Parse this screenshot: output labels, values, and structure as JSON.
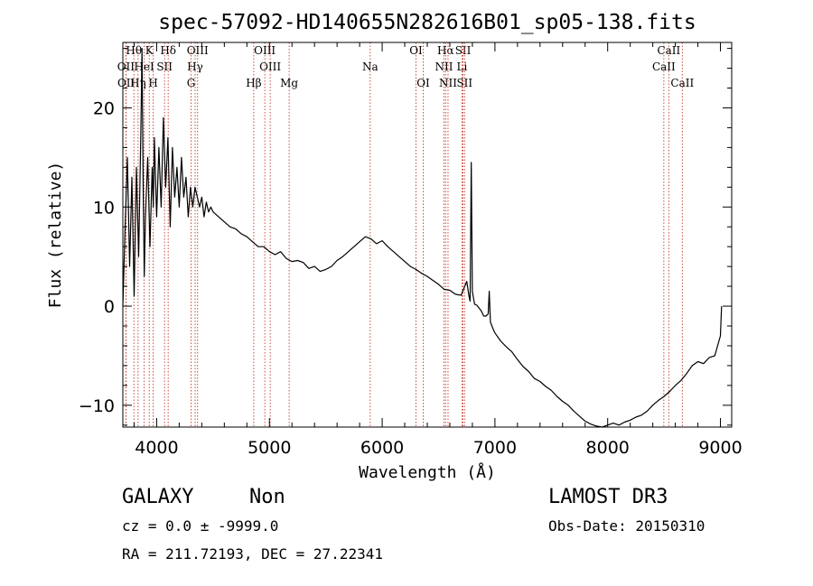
{
  "chart_data": {
    "type": "line",
    "title": "spec-57092-HD140655N282616B01_sp05-138.fits",
    "xlabel": "Wavelength (Å)",
    "ylabel": "Flux (relative)",
    "xlim": [
      3700,
      9100
    ],
    "ylim": [
      -12.2,
      26.6
    ],
    "xticks": [
      4000,
      5000,
      6000,
      7000,
      8000,
      9000
    ],
    "yticks": [
      -10,
      0,
      10,
      20
    ],
    "grid": false,
    "series": [
      {
        "color": "#000000",
        "x": [
          3700,
          3720,
          3740,
          3760,
          3780,
          3800,
          3820,
          3840,
          3860,
          3870,
          3880,
          3890,
          3900,
          3920,
          3940,
          3960,
          3970,
          3980,
          4000,
          4020,
          4040,
          4060,
          4080,
          4100,
          4120,
          4140,
          4160,
          4180,
          4200,
          4220,
          4240,
          4260,
          4280,
          4300,
          4320,
          4340,
          4360,
          4380,
          4400,
          4420,
          4440,
          4460,
          4480,
          4500,
          4550,
          4600,
          4650,
          4700,
          4750,
          4800,
          4850,
          4900,
          4950,
          5000,
          5050,
          5100,
          5150,
          5200,
          5250,
          5300,
          5350,
          5400,
          5450,
          5500,
          5550,
          5600,
          5650,
          5700,
          5750,
          5800,
          5850,
          5900,
          5950,
          6000,
          6050,
          6100,
          6150,
          6200,
          6250,
          6300,
          6350,
          6400,
          6450,
          6500,
          6550,
          6600,
          6650,
          6700,
          6750,
          6770,
          6780,
          6790,
          6800,
          6810,
          6820,
          6840,
          6860,
          6880,
          6900,
          6920,
          6940,
          6950,
          6960,
          6980,
          7000,
          7050,
          7100,
          7150,
          7200,
          7250,
          7300,
          7350,
          7400,
          7450,
          7500,
          7550,
          7600,
          7650,
          7700,
          7750,
          7800,
          7850,
          7900,
          7950,
          8000,
          8050,
          8100,
          8150,
          8200,
          8250,
          8300,
          8350,
          8400,
          8450,
          8500,
          8550,
          8600,
          8650,
          8700,
          8750,
          8800,
          8850,
          8900,
          8950,
          9000,
          9010
        ],
        "y": [
          0,
          8,
          15,
          4,
          13,
          1,
          14,
          5,
          18,
          26,
          12,
          3,
          9,
          15,
          6,
          14,
          10,
          17,
          9,
          16,
          10,
          19,
          12,
          17,
          8,
          16,
          11,
          14,
          10,
          15,
          11,
          13,
          9,
          12,
          10,
          12,
          11,
          10,
          11,
          9,
          10.5,
          9.5,
          10,
          9.5,
          9,
          8.5,
          8,
          7.8,
          7.3,
          7,
          6.5,
          6,
          6,
          5.5,
          5.2,
          5.5,
          4.8,
          4.5,
          4.6,
          4.4,
          3.8,
          4,
          3.5,
          3.7,
          4,
          4.6,
          5,
          5.5,
          6,
          6.5,
          7,
          6.8,
          6.3,
          6.6,
          6,
          5.5,
          5,
          4.5,
          4,
          3.7,
          3.3,
          3,
          2.6,
          2.2,
          1.7,
          1.6,
          1.2,
          1.1,
          2.5,
          1,
          0.5,
          14.5,
          1.5,
          0.8,
          0.2,
          0.1,
          -0.2,
          -0.5,
          -1,
          -1,
          -0.8,
          1.5,
          -1.6,
          -2.2,
          -2.7,
          -3.5,
          -4.1,
          -4.6,
          -5.4,
          -6.1,
          -6.6,
          -7.3,
          -7.6,
          -8.1,
          -8.5,
          -9.1,
          -9.6,
          -10,
          -10.6,
          -11.1,
          -11.6,
          -11.9,
          -12.1,
          -12.2,
          -12,
          -11.8,
          -12,
          -11.7,
          -11.5,
          -11.2,
          -11,
          -10.6,
          -10,
          -9.5,
          -9.1,
          -8.6,
          -8,
          -7.5,
          -6.8,
          -6,
          -5.6,
          -5.8,
          -5.2,
          -5,
          -3,
          0
        ]
      }
    ],
    "line_markers": [
      {
        "label": "OII",
        "x": 3727,
        "row": 1
      },
      {
        "label": "OII",
        "x": 3729,
        "row": 2
      },
      {
        "label": "Hθ",
        "x": 3798,
        "row": 0
      },
      {
        "label": "HeI",
        "x": 3889,
        "row": 1
      },
      {
        "label": "Hη",
        "x": 3835,
        "row": 2
      },
      {
        "label": "K",
        "x": 3934,
        "row": 0
      },
      {
        "label": "SII",
        "x": 4070,
        "row": 1
      },
      {
        "label": "H",
        "x": 3969,
        "row": 2
      },
      {
        "label": "Hδ",
        "x": 4102,
        "row": 0
      },
      {
        "label": "OIII",
        "x": 4363,
        "row": 0
      },
      {
        "label": "Hγ",
        "x": 4341,
        "row": 1
      },
      {
        "label": "G",
        "x": 4305,
        "row": 2
      },
      {
        "label": "OIII",
        "x": 4959,
        "row": 0
      },
      {
        "label": "OIII",
        "x": 5007,
        "row": 1
      },
      {
        "label": "Hβ",
        "x": 4861,
        "row": 2
      },
      {
        "label": "Mg",
        "x": 5175,
        "row": 2
      },
      {
        "label": "Na",
        "x": 5894,
        "row": 1
      },
      {
        "label": "OI",
        "x": 6300,
        "row": 0
      },
      {
        "label": "OI",
        "x": 6364,
        "row": 2
      },
      {
        "label": "Hα",
        "x": 6563,
        "row": 0
      },
      {
        "label": "SII",
        "x": 6717,
        "row": 0
      },
      {
        "label": "NII",
        "x": 6548,
        "row": 1
      },
      {
        "label": "Li",
        "x": 6708,
        "row": 1
      },
      {
        "label": "NII",
        "x": 6584,
        "row": 2
      },
      {
        "label": "SII",
        "x": 6731,
        "row": 2
      },
      {
        "label": "CaII",
        "x": 8542,
        "row": 0
      },
      {
        "label": "CaII",
        "x": 8498,
        "row": 1
      },
      {
        "label": "CaII",
        "x": 8662,
        "row": 2
      }
    ]
  },
  "info": {
    "class": "GALAXY",
    "subclass": "Non",
    "cz": "cz = 0.0 ± -9999.0",
    "coords": "RA = 211.72193, DEC =  27.22341",
    "survey": "LAMOST DR3",
    "obs_date": "Obs-Date: 20150310"
  }
}
